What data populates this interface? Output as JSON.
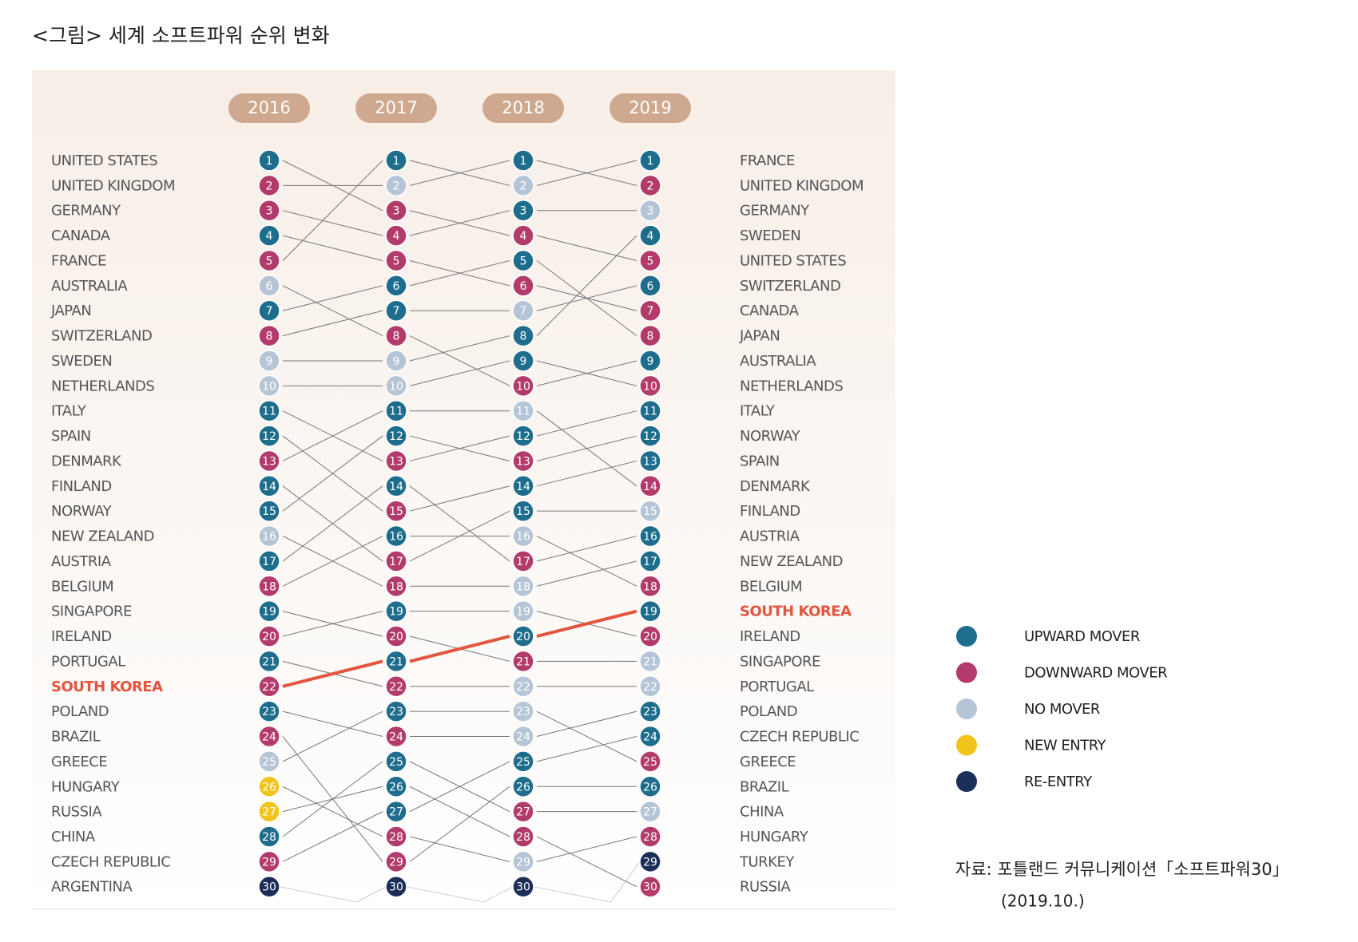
{
  "chart_data": {
    "type": "bump",
    "title": "<그림> 세계 소프트파워 순위 변화",
    "left_labels": [
      "UNITED STATES",
      "UNITED KINGDOM",
      "GERMANY",
      "CANADA",
      "FRANCE",
      "AUSTRALIA",
      "JAPAN",
      "SWITZERLAND",
      "SWEDEN",
      "NETHERLANDS",
      "ITALY",
      "SPAIN",
      "DENMARK",
      "FINLAND",
      "NORWAY",
      "NEW ZEALAND",
      "AUSTRIA",
      "BELGIUM",
      "SINGAPORE",
      "IRELAND",
      "PORTUGAL",
      "SOUTH KOREA",
      "POLAND",
      "BRAZIL",
      "GREECE",
      "HUNGARY",
      "RUSSIA",
      "CHINA",
      "CZECH REPUBLIC",
      "ARGENTINA"
    ],
    "right_labels": [
      "FRANCE",
      "UNITED KINGDOM",
      "GERMANY",
      "SWEDEN",
      "UNITED STATES",
      "SWITZERLAND",
      "CANADA",
      "JAPAN",
      "AUSTRALIA",
      "NETHERLANDS",
      "ITALY",
      "NORWAY",
      "SPAIN",
      "DENMARK",
      "FINLAND",
      "AUSTRIA",
      "NEW ZEALAND",
      "BELGIUM",
      "SOUTH KOREA",
      "IRELAND",
      "SINGAPORE",
      "PORTUGAL",
      "POLAND",
      "CZECH REPUBLIC",
      "GREECE",
      "BRAZIL",
      "CHINA",
      "HUNGARY",
      "TURKEY",
      "RUSSIA"
    ],
    "highlight_color": "#e2553f",
    "columns": [
      {
        "year": "2016",
        "highlight_rank": 22,
        "ranks": [
          1,
          2,
          3,
          4,
          5,
          6,
          7,
          8,
          9,
          10,
          11,
          12,
          13,
          14,
          15,
          16,
          17,
          18,
          19,
          20,
          21,
          22,
          23,
          24,
          25,
          26,
          27,
          28,
          29,
          30
        ],
        "status": [
          0,
          1,
          1,
          0,
          1,
          2,
          0,
          1,
          2,
          2,
          0,
          0,
          1,
          0,
          0,
          2,
          0,
          1,
          0,
          1,
          0,
          1,
          0,
          1,
          2,
          3,
          3,
          0,
          1,
          4
        ],
        "next": [
          3,
          2,
          4,
          5,
          1,
          8,
          6,
          7,
          9,
          10,
          13,
          15,
          11,
          17,
          12,
          18,
          14,
          16,
          20,
          19,
          22,
          21,
          24,
          29,
          23,
          28,
          26,
          25,
          27,
          null
        ]
      },
      {
        "year": "2017",
        "highlight_rank": 21,
        "ranks": [
          1,
          2,
          3,
          4,
          5,
          6,
          7,
          8,
          9,
          10,
          11,
          12,
          13,
          14,
          15,
          16,
          17,
          18,
          19,
          20,
          21,
          22,
          23,
          24,
          25,
          26,
          27,
          28,
          29,
          30
        ],
        "status": [
          0,
          2,
          1,
          1,
          1,
          0,
          0,
          1,
          2,
          2,
          0,
          0,
          1,
          0,
          1,
          0,
          1,
          1,
          0,
          1,
          0,
          1,
          0,
          1,
          0,
          0,
          0,
          1,
          1,
          4
        ],
        "next": [
          2,
          1,
          4,
          3,
          6,
          5,
          7,
          10,
          8,
          9,
          11,
          13,
          12,
          17,
          14,
          16,
          15,
          18,
          19,
          21,
          20,
          22,
          23,
          24,
          27,
          28,
          25,
          29,
          26,
          null
        ]
      },
      {
        "year": "2018",
        "highlight_rank": 20,
        "ranks": [
          1,
          2,
          3,
          4,
          5,
          6,
          7,
          8,
          9,
          10,
          11,
          12,
          13,
          14,
          15,
          16,
          17,
          18,
          19,
          20,
          21,
          22,
          23,
          24,
          25,
          26,
          27,
          28,
          29,
          30
        ],
        "status": [
          0,
          2,
          0,
          1,
          0,
          1,
          2,
          0,
          0,
          1,
          2,
          0,
          1,
          0,
          0,
          2,
          1,
          2,
          2,
          0,
          1,
          2,
          2,
          2,
          0,
          0,
          1,
          1,
          2,
          4
        ],
        "next": [
          2,
          1,
          3,
          5,
          8,
          7,
          6,
          4,
          10,
          9,
          14,
          11,
          12,
          13,
          15,
          18,
          16,
          17,
          20,
          19,
          21,
          22,
          25,
          23,
          24,
          26,
          27,
          30,
          28,
          null
        ]
      },
      {
        "year": "2019",
        "highlight_rank": 19,
        "ranks": [
          1,
          2,
          3,
          4,
          5,
          6,
          7,
          8,
          9,
          10,
          11,
          12,
          13,
          14,
          15,
          16,
          17,
          18,
          19,
          20,
          21,
          22,
          23,
          24,
          25,
          26,
          27,
          28,
          29,
          30
        ],
        "status": [
          0,
          1,
          2,
          0,
          1,
          0,
          1,
          1,
          0,
          1,
          0,
          0,
          0,
          1,
          2,
          0,
          0,
          1,
          0,
          1,
          2,
          2,
          0,
          0,
          1,
          0,
          2,
          1,
          4,
          1
        ],
        "next": []
      }
    ],
    "legend": [
      {
        "name": "UPWARD MOVER",
        "color": "#1e6d8d"
      },
      {
        "name": "DOWNWARD MOVER",
        "color": "#b23b6b"
      },
      {
        "name": "NO MOVER",
        "color": "#b5c5d5"
      },
      {
        "name": "NEW ENTRY",
        "color": "#f1c419"
      },
      {
        "name": "RE-ENTRY",
        "color": "#1b2e58"
      }
    ],
    "source": [
      "자료: 포틀랜드 커뮤니케이션「소프트파워30」",
      "(2019.10.)"
    ]
  }
}
